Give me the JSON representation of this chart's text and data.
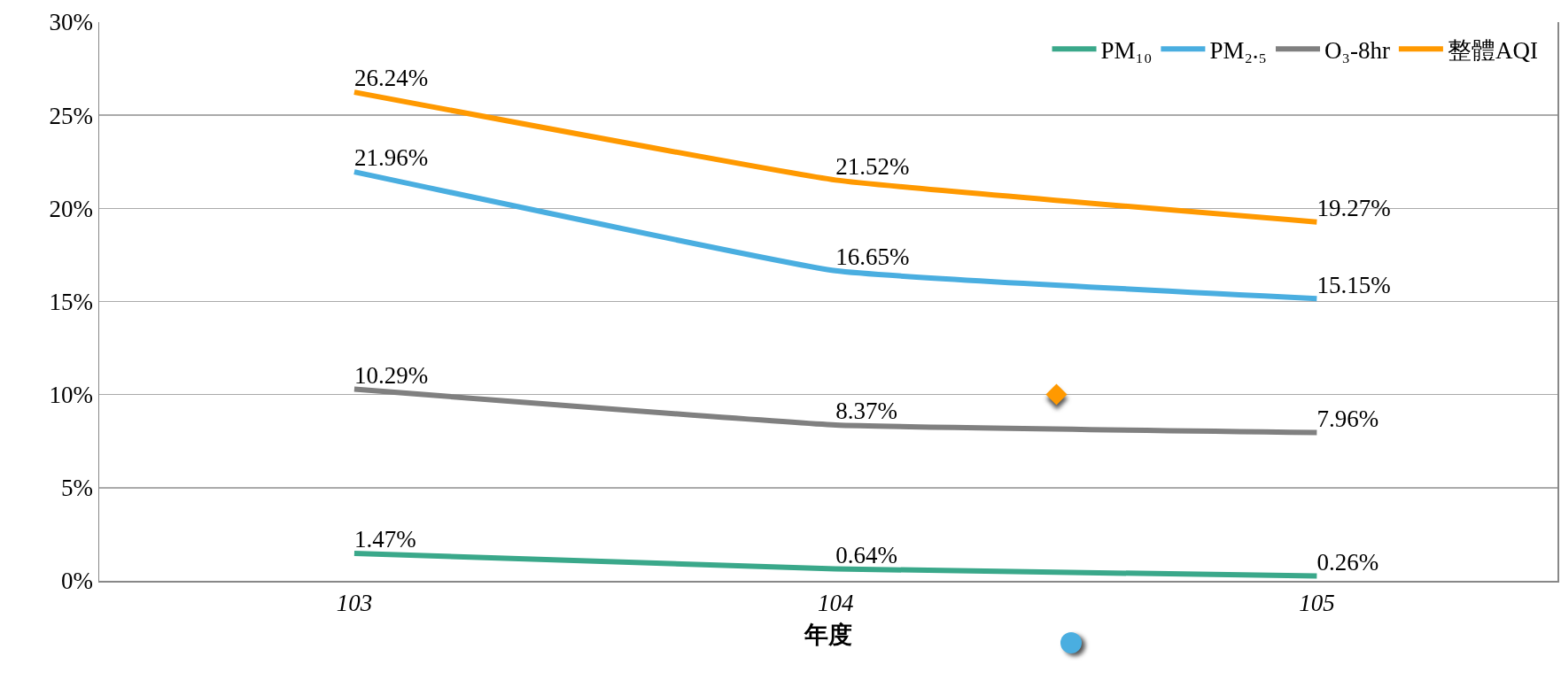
{
  "chart_data": {
    "type": "line",
    "xlabel": "年度",
    "categories": [
      "103",
      "104",
      "105"
    ],
    "series": [
      {
        "name": "PM₁₀",
        "color": "#3aa88a",
        "values": [
          1.47,
          0.64,
          0.26
        ],
        "value_labels": [
          "1.47%",
          "0.64%",
          "0.26%"
        ]
      },
      {
        "name": "PM₂.₅",
        "color": "#4aaee0",
        "values": [
          21.96,
          16.65,
          15.15
        ],
        "value_labels": [
          "21.96%",
          "16.65%",
          "15.15%"
        ]
      },
      {
        "name": "O₃-8hr",
        "color": "#808080",
        "values": [
          10.29,
          8.37,
          7.96
        ],
        "value_labels": [
          "10.29%",
          "8.37%",
          "7.96%"
        ]
      },
      {
        "name": "整體AQI",
        "color": "#ff9900",
        "values": [
          26.24,
          21.52,
          19.27
        ],
        "value_labels": [
          "26.24%",
          "21.52%",
          "19.27%"
        ]
      }
    ],
    "ylim": [
      0,
      30
    ],
    "yticks": [
      {
        "value": 0,
        "label": "0%"
      },
      {
        "value": 5,
        "label": "5%"
      },
      {
        "value": 10,
        "label": "10%"
      },
      {
        "value": 15,
        "label": "15%"
      },
      {
        "value": 20,
        "label": "20%"
      },
      {
        "value": 25,
        "label": "25%"
      },
      {
        "value": 30,
        "label": "30%"
      }
    ],
    "grid": "y",
    "legend": "top right",
    "marker": "none",
    "line_style": "solid"
  }
}
